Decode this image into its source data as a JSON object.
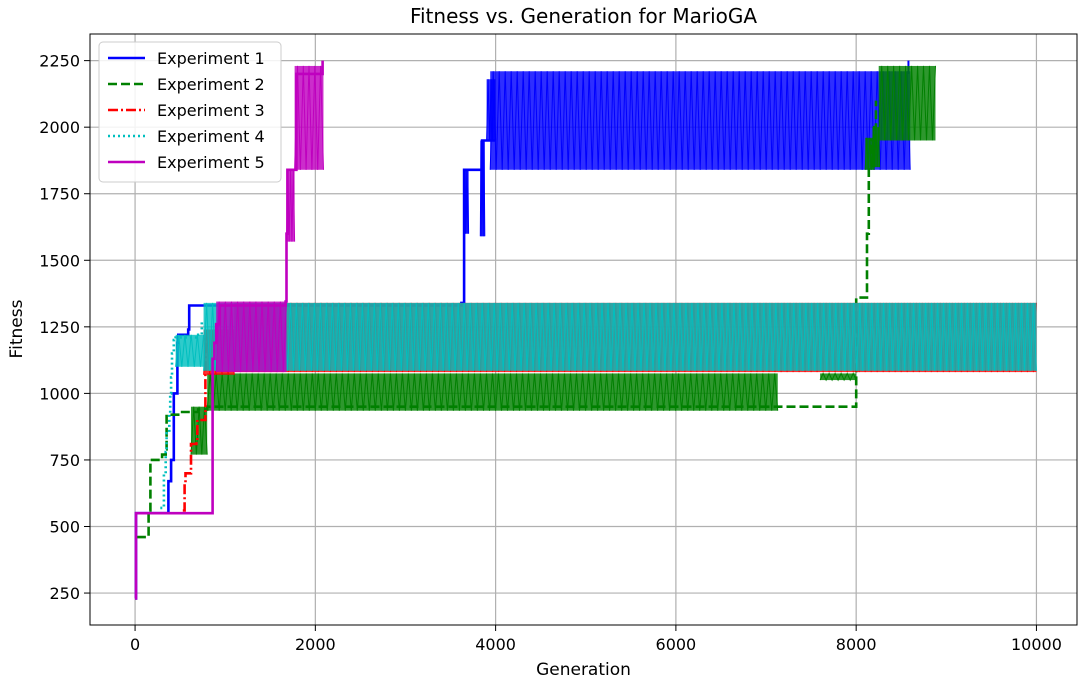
{
  "chart_data": {
    "type": "line",
    "title": "Fitness vs. Generation for MarioGA",
    "xlabel": "Generation",
    "ylabel": "Fitness",
    "xlim": [
      -500,
      10450
    ],
    "ylim": [
      130,
      2350
    ],
    "xticks": [
      0,
      2000,
      4000,
      6000,
      8000,
      10000
    ],
    "yticks": [
      250,
      500,
      750,
      1000,
      1250,
      1500,
      1750,
      2000,
      2250
    ],
    "grid": true,
    "legend_position": "top-left",
    "series": [
      {
        "name": "Experiment 1",
        "color": "#0000ff",
        "dash": "solid",
        "steps": [
          [
            0,
            230
          ],
          [
            10,
            550
          ],
          [
            360,
            550
          ],
          [
            370,
            670
          ],
          [
            400,
            750
          ],
          [
            430,
            1000
          ],
          [
            470,
            1190
          ],
          [
            480,
            1220
          ],
          [
            560,
            1220
          ],
          [
            590,
            1240
          ],
          [
            600,
            1330
          ],
          [
            800,
            1330
          ],
          [
            3620,
            1340
          ],
          [
            3650,
            1840
          ],
          [
            3800,
            1840
          ],
          [
            3850,
            1950
          ],
          [
            4000,
            1950
          ]
        ],
        "bands": [
          [
            3650,
            3700,
            1600,
            1840
          ],
          [
            3830,
            3880,
            1590,
            1950
          ],
          [
            3900,
            4000,
            1950,
            2180
          ],
          [
            3940,
            8600,
            1840,
            2210
          ]
        ],
        "points": [
          [
            8580,
            2250
          ]
        ]
      },
      {
        "name": "Experiment 2",
        "color": "#008000",
        "dash": "dashed",
        "steps": [
          [
            20,
            460
          ],
          [
            130,
            460
          ],
          [
            150,
            560
          ],
          [
            170,
            750
          ],
          [
            300,
            770
          ],
          [
            340,
            790
          ],
          [
            350,
            920
          ],
          [
            500,
            930
          ],
          [
            700,
            940
          ],
          [
            800,
            950
          ],
          [
            8000,
            1360
          ],
          [
            8080,
            1360
          ],
          [
            8120,
            1600
          ],
          [
            8140,
            1850
          ],
          [
            8170,
            1950
          ],
          [
            8200,
            2000
          ],
          [
            8220,
            2100
          ]
        ],
        "bands": [
          [
            620,
            800,
            770,
            950
          ],
          [
            800,
            7130,
            935,
            1075
          ],
          [
            7600,
            8000,
            1050,
            1075
          ],
          [
            8100,
            8200,
            1840,
            1960
          ],
          [
            8180,
            8260,
            1850,
            2000
          ],
          [
            8250,
            8880,
            1950,
            2230
          ]
        ]
      },
      {
        "name": "Experiment 3",
        "color": "#ff0000",
        "dash": "dashdot",
        "steps": [
          [
            530,
            560
          ],
          [
            550,
            660
          ],
          [
            560,
            700
          ],
          [
            600,
            700
          ],
          [
            620,
            810
          ],
          [
            680,
            820
          ],
          [
            690,
            900
          ],
          [
            760,
            900
          ],
          [
            780,
            1220
          ]
        ],
        "bands": [
          [
            760,
            1100,
            1070,
            1240
          ],
          [
            1100,
            10000,
            1080,
            1340
          ]
        ]
      },
      {
        "name": "Experiment 4",
        "color": "#00bfbf",
        "dash": "dotted",
        "steps": [
          [
            280,
            570
          ],
          [
            320,
            700
          ],
          [
            340,
            780
          ],
          [
            350,
            850
          ],
          [
            380,
            920
          ],
          [
            390,
            1000
          ],
          [
            400,
            1060
          ],
          [
            410,
            1150
          ],
          [
            430,
            1200
          ],
          [
            450,
            1210
          ],
          [
            700,
            1220
          ],
          [
            740,
            1270
          ]
        ],
        "bands": [
          [
            450,
            760,
            1100,
            1220
          ],
          [
            760,
            10000,
            1085,
            1340
          ]
        ]
      },
      {
        "name": "Experiment 5",
        "color": "#bf00bf",
        "dash": "solid",
        "steps": [
          [
            0,
            230
          ],
          [
            10,
            550
          ],
          [
            830,
            550
          ],
          [
            860,
            560
          ],
          [
            860,
            1130
          ],
          [
            880,
            1190
          ],
          [
            900,
            1260
          ],
          [
            940,
            1330
          ],
          [
            1670,
            1345
          ],
          [
            1680,
            1600
          ],
          [
            1690,
            1840
          ],
          [
            1780,
            1840
          ],
          [
            1790,
            2200
          ],
          [
            2080,
            2250
          ]
        ],
        "bands": [
          [
            900,
            1680,
            1080,
            1345
          ],
          [
            1680,
            1770,
            1570,
            1840
          ],
          [
            1770,
            2090,
            1840,
            2230
          ]
        ]
      }
    ]
  }
}
